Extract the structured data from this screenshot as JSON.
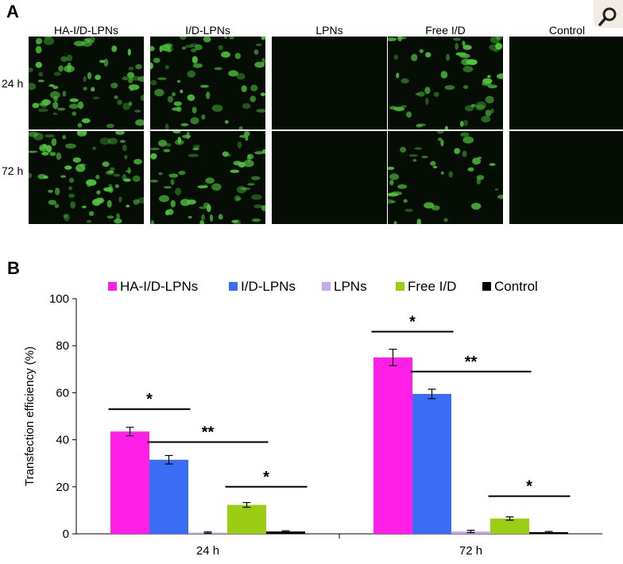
{
  "panel_a": {
    "letter": "A",
    "columns": [
      "HA-I/D-LPNs",
      "I/D-LPNs",
      "LPNs",
      "Free I/D",
      "Control"
    ],
    "rows": [
      "24 h",
      "72 h"
    ],
    "fluorescence_color": "#4ec83a",
    "background_color": "#050d05"
  },
  "panel_b": {
    "letter": "B"
  },
  "corner_button": {
    "icon": "magnifier-icon"
  },
  "chart_data": {
    "type": "bar",
    "categories": [
      "24 h",
      "72 h"
    ],
    "ylabel": "Transfection efficiency (%)",
    "ylim": [
      0,
      100
    ],
    "yticks": [
      0,
      20,
      40,
      60,
      80,
      100
    ],
    "grid": false,
    "legend_position": "top",
    "series": [
      {
        "name": "HA-I/D-LPNs",
        "color": "#ff1fe6",
        "values": [
          43.5,
          75.0
        ],
        "errors": [
          1.8,
          3.5
        ]
      },
      {
        "name": "I/D-LPNs",
        "color": "#3a6cf4",
        "values": [
          31.5,
          59.5
        ],
        "errors": [
          1.8,
          2.0
        ]
      },
      {
        "name": "LPNs",
        "color": "#c8a8f0",
        "values": [
          0.5,
          1.0
        ],
        "errors": [
          0.3,
          0.5
        ]
      },
      {
        "name": "Free I/D",
        "color": "#9acd14",
        "values": [
          12.3,
          6.5
        ],
        "errors": [
          1.0,
          0.7
        ]
      },
      {
        "name": "Control",
        "color": "#000000",
        "values": [
          1.0,
          0.7
        ],
        "errors": [
          0.3,
          0.3
        ]
      }
    ],
    "annotations": [
      {
        "text": "*",
        "group": "24 h",
        "from_series": 0,
        "to_series": 1,
        "level": 53
      },
      {
        "text": "**",
        "group": "24 h",
        "from_series": 1,
        "to_series": 3,
        "level": 39
      },
      {
        "text": "*",
        "group": "24 h",
        "from_series": 3,
        "to_series": 4,
        "level": 20
      },
      {
        "text": "*",
        "group": "72 h",
        "from_series": 0,
        "to_series": 1,
        "level": 86
      },
      {
        "text": "**",
        "group": "72 h",
        "from_series": 1,
        "to_series": 3,
        "level": 69
      },
      {
        "text": "*",
        "group": "72 h",
        "from_series": 3,
        "to_series": 4,
        "level": 16
      }
    ]
  }
}
